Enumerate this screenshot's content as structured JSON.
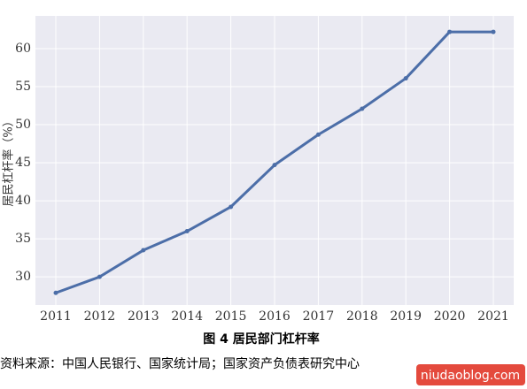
{
  "chart_data": {
    "type": "line",
    "y_label": "居民杠杆率（%）",
    "caption": "图 4  居民部门杠杆率",
    "source": "资料来源：中国人民银行、国家统计局；国家资产负债表研究中心",
    "watermark": "niudaoblog.com",
    "categories": [
      "2011",
      "2012",
      "2013",
      "2014",
      "2015",
      "2016",
      "2017",
      "2018",
      "2019",
      "2020",
      "2021"
    ],
    "series": [
      {
        "color": "#4c6ea8",
        "values": [
          27.9,
          30.0,
          33.5,
          36.0,
          39.2,
          44.7,
          48.7,
          52.1,
          56.1,
          62.2,
          62.2
        ]
      }
    ],
    "ylim": [
      26.3,
      64.3
    ],
    "yticks": [
      30,
      35,
      40,
      45,
      50,
      55,
      60
    ],
    "grid": true
  }
}
